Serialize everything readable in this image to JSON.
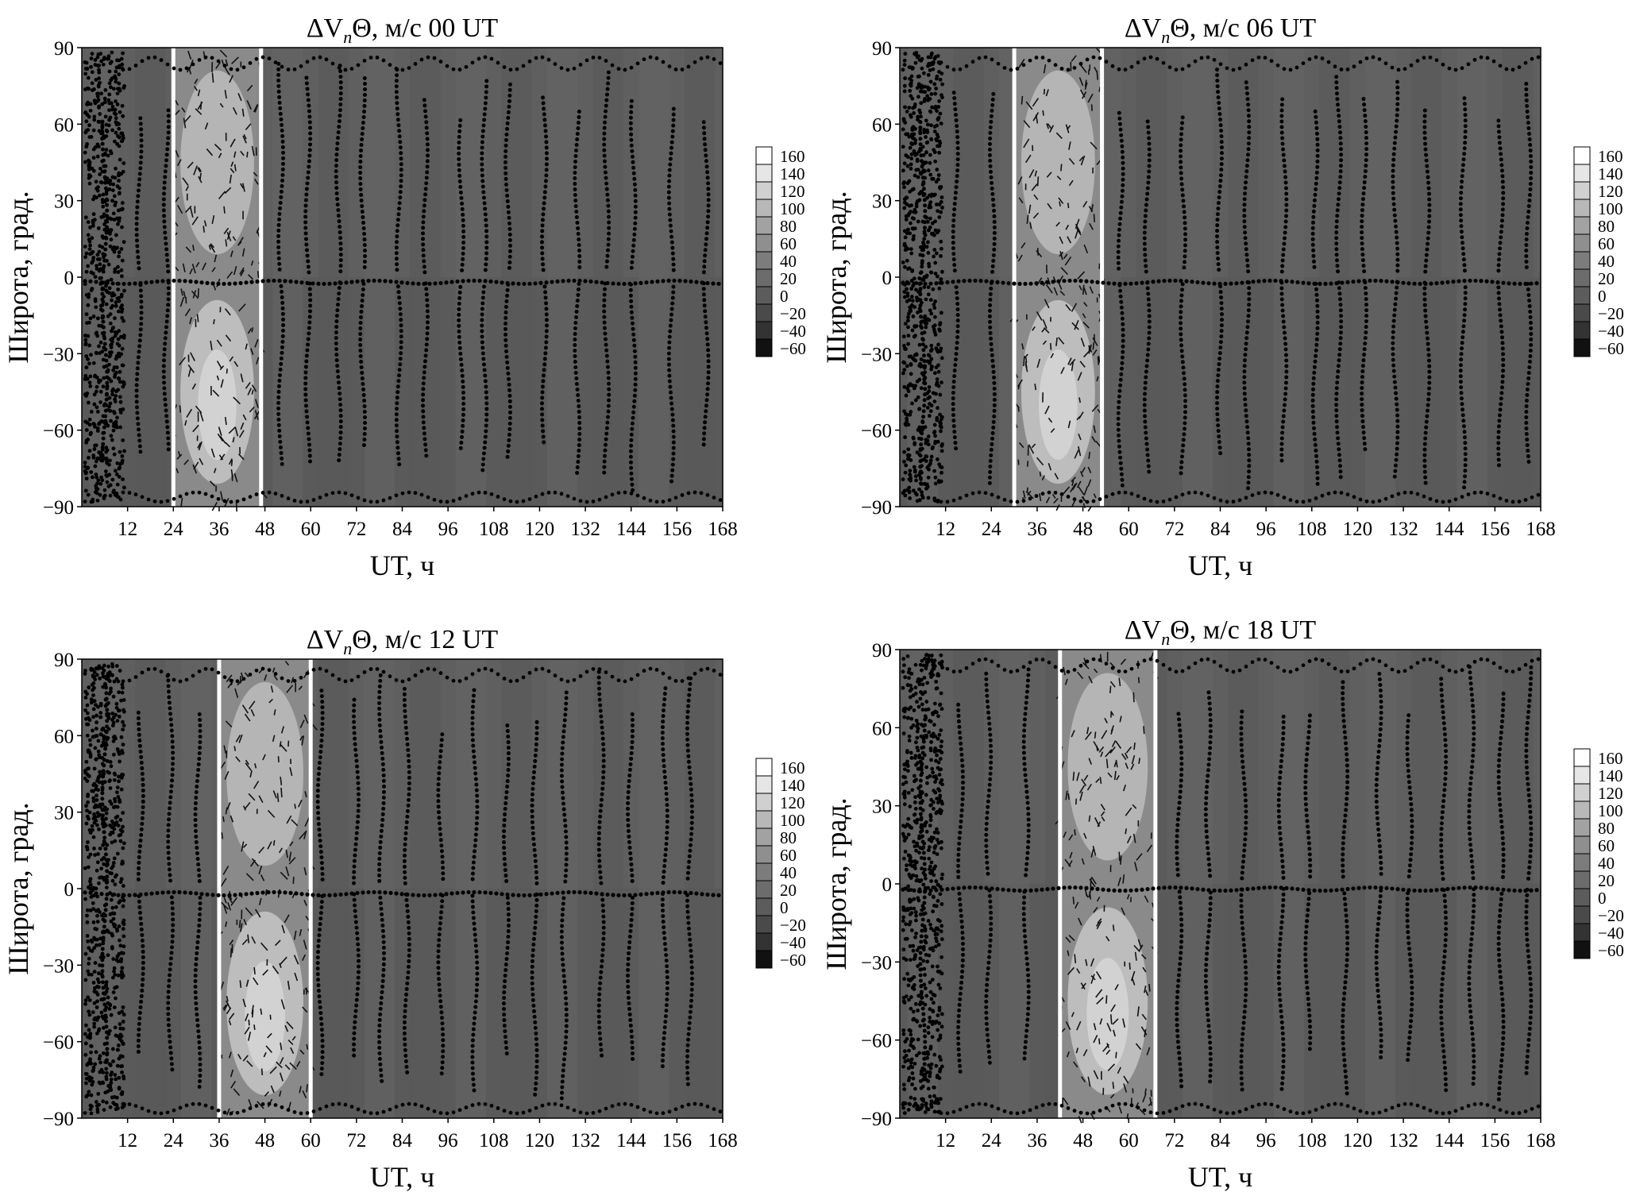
{
  "figure": {
    "colorscale": {
      "levels": [
        160,
        140,
        120,
        100,
        80,
        60,
        40,
        20,
        0,
        -20,
        -40,
        -60
      ],
      "colors": [
        "#ffffff",
        "#e6e6e6",
        "#d0d0d0",
        "#b8b8b8",
        "#a2a2a2",
        "#8f8f8f",
        "#7c7c7c",
        "#6c6c6c",
        "#5c5c5c",
        "#4a4a4a",
        "#333333",
        "#111111"
      ]
    },
    "background_color": "#5f5f5f"
  },
  "chart_data": [
    {
      "type": "heatmap",
      "title_prefix": "ΔV",
      "title_sub": "n",
      "title_rest": "Θ, м/с 00 UT",
      "xlabel": "UT, ч",
      "ylabel": "Широта, град.",
      "xlim": [
        0,
        168
      ],
      "ylim": [
        -90,
        90
      ],
      "xticks": [
        12,
        24,
        36,
        48,
        60,
        72,
        84,
        96,
        108,
        120,
        132,
        144,
        156,
        168
      ],
      "yticks": [
        90,
        60,
        30,
        0,
        -30,
        -60,
        -90
      ],
      "storm_window": [
        24,
        47
      ]
    },
    {
      "type": "heatmap",
      "title_prefix": "ΔV",
      "title_sub": "n",
      "title_rest": "Θ, м/с  06 UT",
      "xlabel": "UT, ч",
      "ylabel": "Широта, град.",
      "xlim": [
        0,
        168
      ],
      "ylim": [
        -90,
        90
      ],
      "xticks": [
        12,
        24,
        36,
        48,
        60,
        72,
        84,
        96,
        108,
        120,
        132,
        144,
        156,
        168
      ],
      "yticks": [
        90,
        60,
        30,
        0,
        -30,
        -60,
        -90
      ],
      "storm_window": [
        30,
        53
      ]
    },
    {
      "type": "heatmap",
      "title_prefix": "ΔV",
      "title_sub": "n",
      "title_rest": "Θ, м/с  12 UT",
      "xlabel": "UT, ч",
      "ylabel": "Широта, град.",
      "xlim": [
        0,
        168
      ],
      "ylim": [
        -90,
        90
      ],
      "xticks": [
        12,
        24,
        36,
        48,
        60,
        72,
        84,
        96,
        108,
        120,
        132,
        144,
        156,
        168
      ],
      "yticks": [
        90,
        60,
        30,
        0,
        -30,
        -60,
        -90
      ],
      "storm_window": [
        36,
        60
      ]
    },
    {
      "type": "heatmap",
      "title_prefix": "ΔV",
      "title_sub": "n",
      "title_rest": "Θ, м/с 18 UT",
      "xlabel": "UT, ч",
      "ylabel": "Широта, град.",
      "xlim": [
        0,
        168
      ],
      "ylim": [
        -90,
        90
      ],
      "xticks": [
        12,
        24,
        36,
        48,
        60,
        72,
        84,
        96,
        108,
        120,
        132,
        144,
        156,
        168
      ],
      "yticks": [
        90,
        60,
        30,
        0,
        -30,
        -60,
        -90
      ],
      "storm_window": [
        42,
        67
      ]
    }
  ]
}
